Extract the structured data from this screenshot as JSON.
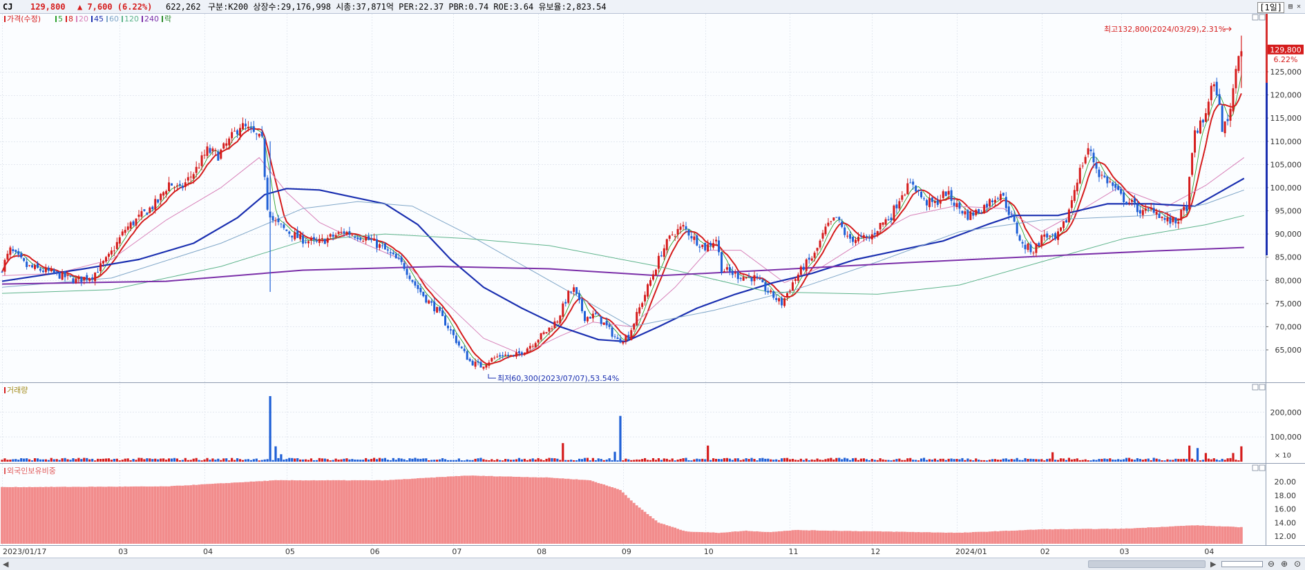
{
  "header": {
    "ticker": "CJ",
    "price": "129,800",
    "change": "▲ 7,600 (6.22%)",
    "volume": "622,262",
    "meta": "구분:K200 상장수:29,176,998 시총:37,871억 PER:22.37 PBR:0.74 ROE:3.64 유보율:2,823.54",
    "period": "[1일]",
    "menu": "▤ ✕"
  },
  "legends": {
    "price": [
      {
        "label": "가격(수정)",
        "color": "#d51c1c"
      },
      {
        "label": "5",
        "color": "#2ca02c"
      },
      {
        "label": "8",
        "color": "#d51c1c"
      },
      {
        "label": "20",
        "color": "#d77fb8"
      },
      {
        "label": "45",
        "color": "#1a2fb0"
      },
      {
        "label": "60",
        "color": "#7fa6c8"
      },
      {
        "label": "120",
        "color": "#5cb38a"
      },
      {
        "label": "240",
        "color": "#7a2ea8"
      },
      {
        "label": "락",
        "color": "#2a8a2a"
      }
    ],
    "volume": {
      "label": "거래량",
      "color": "#a38b1c"
    },
    "foreign": {
      "label": "외국인보유비중",
      "color": "#e05a5a"
    }
  },
  "annotations": {
    "high": "최고132,800(2024/03/29),2.31%",
    "low": "최저60,300(2023/07/07),53.54%",
    "last_price": "129,800",
    "last_pct": "6.22%",
    "volume_multiplier": "× 10"
  },
  "x_axis_labels": [
    {
      "label": "2023/01/17",
      "day": 0
    },
    {
      "label": "03",
      "day": 43
    },
    {
      "label": "04",
      "day": 74
    },
    {
      "label": "05",
      "day": 104
    },
    {
      "label": "06",
      "day": 135
    },
    {
      "label": "07",
      "day": 165
    },
    {
      "label": "08",
      "day": 196
    },
    {
      "label": "09",
      "day": 227
    },
    {
      "label": "10",
      "day": 257
    },
    {
      "label": "11",
      "day": 288
    },
    {
      "label": "12",
      "day": 318
    },
    {
      "label": "2024/01",
      "day": 349
    },
    {
      "label": "02",
      "day": 380
    },
    {
      "label": "03",
      "day": 409
    },
    {
      "label": "04",
      "day": 440
    }
  ],
  "chart_data": [
    {
      "type": "candlestick",
      "title": "가격(수정)",
      "x_range_days": [
        0,
        441
      ],
      "ylim": [
        60000,
        135000
      ],
      "y_ticks": [
        65000,
        70000,
        75000,
        80000,
        85000,
        90000,
        95000,
        100000,
        105000,
        110000,
        115000,
        120000,
        125000
      ],
      "y_tick_labels": [
        "65,000",
        "70,000",
        "75,000",
        "80,000",
        "85,000",
        "90,000",
        "95,000",
        "100,000",
        "105,000",
        "110,000",
        "115,000",
        "120,000",
        "125,000"
      ],
      "price_path": [
        [
          0,
          81500
        ],
        [
          4,
          86500
        ],
        [
          10,
          83000
        ],
        [
          20,
          81500
        ],
        [
          28,
          80000
        ],
        [
          34,
          81000
        ],
        [
          40,
          85000
        ],
        [
          46,
          91000
        ],
        [
          52,
          94000
        ],
        [
          58,
          97000
        ],
        [
          62,
          101000
        ],
        [
          66,
          99500
        ],
        [
          72,
          104000
        ],
        [
          76,
          108000
        ],
        [
          80,
          107000
        ],
        [
          84,
          110000
        ],
        [
          88,
          113500
        ],
        [
          92,
          112000
        ],
        [
          96,
          110000
        ],
        [
          98,
          96000
        ],
        [
          100,
          93000
        ],
        [
          104,
          91000
        ],
        [
          110,
          89000
        ],
        [
          116,
          88000
        ],
        [
          122,
          89500
        ],
        [
          126,
          90500
        ],
        [
          132,
          89500
        ],
        [
          136,
          88500
        ],
        [
          140,
          87000
        ],
        [
          144,
          85000
        ],
        [
          148,
          83000
        ],
        [
          152,
          79000
        ],
        [
          156,
          76000
        ],
        [
          160,
          73500
        ],
        [
          164,
          70000
        ],
        [
          168,
          66000
        ],
        [
          172,
          62500
        ],
        [
          176,
          61500
        ],
        [
          180,
          63000
        ],
        [
          184,
          64000
        ],
        [
          188,
          63500
        ],
        [
          192,
          65000
        ],
        [
          196,
          67000
        ],
        [
          200,
          69000
        ],
        [
          204,
          71500
        ],
        [
          208,
          77000
        ],
        [
          210,
          78000
        ],
        [
          214,
          72000
        ],
        [
          218,
          72500
        ],
        [
          222,
          70000
        ],
        [
          226,
          67000
        ],
        [
          230,
          68000
        ],
        [
          234,
          74000
        ],
        [
          238,
          80000
        ],
        [
          242,
          86000
        ],
        [
          246,
          90000
        ],
        [
          250,
          91500
        ],
        [
          254,
          89000
        ],
        [
          258,
          87000
        ],
        [
          262,
          89000
        ],
        [
          264,
          82500
        ],
        [
          270,
          81000
        ],
        [
          276,
          80500
        ],
        [
          282,
          77000
        ],
        [
          286,
          75000
        ],
        [
          290,
          79500
        ],
        [
          294,
          83000
        ],
        [
          298,
          85500
        ],
        [
          302,
          91000
        ],
        [
          306,
          93500
        ],
        [
          310,
          89000
        ],
        [
          314,
          89000
        ],
        [
          318,
          89000
        ],
        [
          322,
          92000
        ],
        [
          326,
          94000
        ],
        [
          330,
          99000
        ],
        [
          334,
          101000
        ],
        [
          338,
          97000
        ],
        [
          342,
          96500
        ],
        [
          346,
          99000
        ],
        [
          350,
          96000
        ],
        [
          354,
          94000
        ],
        [
          358,
          95000
        ],
        [
          362,
          97000
        ],
        [
          366,
          99000
        ],
        [
          370,
          93500
        ],
        [
          374,
          87500
        ],
        [
          378,
          86500
        ],
        [
          382,
          90000
        ],
        [
          386,
          88500
        ],
        [
          390,
          93000
        ],
        [
          394,
          102000
        ],
        [
          398,
          108500
        ],
        [
          402,
          103000
        ],
        [
          406,
          101000
        ],
        [
          410,
          98000
        ],
        [
          414,
          96500
        ],
        [
          418,
          94500
        ],
        [
          422,
          95500
        ],
        [
          426,
          93000
        ],
        [
          430,
          92500
        ],
        [
          434,
          96000
        ],
        [
          437,
          112000
        ],
        [
          440,
          114000
        ],
        [
          443,
          121500
        ],
        [
          445,
          121000
        ],
        [
          447,
          113000
        ],
        [
          449,
          114000
        ],
        [
          451,
          121500
        ],
        [
          453,
          129800
        ]
      ],
      "high": {
        "value": 132800,
        "date": "2024/03/29",
        "pct": 2.31
      },
      "low": {
        "value": 60300,
        "date": "2023/07/07",
        "pct": 53.54
      },
      "last": {
        "value": 129800,
        "change_pct": 6.22
      },
      "moving_averages": [
        {
          "name": "5",
          "color": "#2ca02c",
          "width": 0.9
        },
        {
          "name": "8",
          "color": "#d51c1c",
          "width": 2
        },
        {
          "name": "20",
          "color": "#d77fb8",
          "width": 1
        },
        {
          "name": "45",
          "color": "#1a2fb0",
          "width": 2.2
        },
        {
          "name": "60",
          "color": "#7fa6c8",
          "width": 1
        },
        {
          "name": "120",
          "color": "#5cb38a",
          "width": 1
        },
        {
          "name": "240",
          "color": "#7a2ea8",
          "width": 2
        }
      ],
      "ma_paths": {
        "45": [
          [
            0,
            79800
          ],
          [
            30,
            82500
          ],
          [
            50,
            84500
          ],
          [
            70,
            88000
          ],
          [
            86,
            93500
          ],
          [
            96,
            98500
          ],
          [
            104,
            99800
          ],
          [
            116,
            99500
          ],
          [
            128,
            98000
          ],
          [
            140,
            96500
          ],
          [
            152,
            92000
          ],
          [
            164,
            84500
          ],
          [
            176,
            78500
          ],
          [
            190,
            74000
          ],
          [
            204,
            70000
          ],
          [
            218,
            67200
          ],
          [
            228,
            66800
          ],
          [
            240,
            70000
          ],
          [
            254,
            74000
          ],
          [
            268,
            77000
          ],
          [
            282,
            79500
          ],
          [
            296,
            81500
          ],
          [
            312,
            84500
          ],
          [
            328,
            86500
          ],
          [
            344,
            88500
          ],
          [
            360,
            92000
          ],
          [
            370,
            94000
          ],
          [
            386,
            94000
          ],
          [
            404,
            96500
          ],
          [
            420,
            96500
          ],
          [
            436,
            96000
          ],
          [
            448,
            100000
          ],
          [
            454,
            102000
          ]
        ],
        "240": [
          [
            0,
            79200
          ],
          [
            60,
            79800
          ],
          [
            110,
            82200
          ],
          [
            160,
            83000
          ],
          [
            200,
            82500
          ],
          [
            240,
            81000
          ],
          [
            280,
            82200
          ],
          [
            330,
            83800
          ],
          [
            380,
            85200
          ],
          [
            420,
            86300
          ],
          [
            454,
            87100
          ]
        ],
        "120": [
          [
            0,
            77200
          ],
          [
            40,
            78000
          ],
          [
            80,
            83000
          ],
          [
            110,
            88500
          ],
          [
            140,
            90000
          ],
          [
            170,
            89000
          ],
          [
            200,
            87500
          ],
          [
            240,
            83000
          ],
          [
            280,
            77500
          ],
          [
            320,
            77000
          ],
          [
            350,
            79000
          ],
          [
            380,
            84000
          ],
          [
            410,
            89000
          ],
          [
            440,
            92000
          ],
          [
            454,
            94000
          ]
        ],
        "60": [
          [
            0,
            78500
          ],
          [
            40,
            80500
          ],
          [
            80,
            88000
          ],
          [
            110,
            95500
          ],
          [
            130,
            97000
          ],
          [
            150,
            96000
          ],
          [
            170,
            90000
          ],
          [
            200,
            80000
          ],
          [
            230,
            70000
          ],
          [
            260,
            73500
          ],
          [
            290,
            78000
          ],
          [
            320,
            84000
          ],
          [
            350,
            90500
          ],
          [
            380,
            93000
          ],
          [
            420,
            94000
          ],
          [
            440,
            96500
          ],
          [
            454,
            99500
          ]
        ],
        "20": [
          [
            0,
            81000
          ],
          [
            20,
            81500
          ],
          [
            40,
            84500
          ],
          [
            60,
            93000
          ],
          [
            80,
            100000
          ],
          [
            94,
            106500
          ],
          [
            104,
            99000
          ],
          [
            116,
            92500
          ],
          [
            130,
            88500
          ],
          [
            146,
            84500
          ],
          [
            160,
            76500
          ],
          [
            176,
            67500
          ],
          [
            190,
            64000
          ],
          [
            204,
            68000
          ],
          [
            216,
            71000
          ],
          [
            230,
            70000
          ],
          [
            246,
            78500
          ],
          [
            258,
            86500
          ],
          [
            270,
            86500
          ],
          [
            286,
            79500
          ],
          [
            300,
            83000
          ],
          [
            316,
            89000
          ],
          [
            332,
            94000
          ],
          [
            348,
            96000
          ],
          [
            366,
            95500
          ],
          [
            380,
            90500
          ],
          [
            394,
            95000
          ],
          [
            408,
            100000
          ],
          [
            426,
            96000
          ],
          [
            440,
            100500
          ],
          [
            454,
            106500
          ]
        ]
      }
    },
    {
      "type": "bar",
      "title": "거래량",
      "ylim": [
        0,
        270000
      ],
      "y_ticks": [
        100000,
        200000
      ],
      "y_tick_labels": [
        "100,000",
        "200,000"
      ],
      "multiplier_label": "× 10",
      "spikes": [
        {
          "day": 98,
          "value": 265000
        },
        {
          "day": 100,
          "value": 62000
        },
        {
          "day": 102,
          "value": 30000
        },
        {
          "day": 205,
          "value": 75000
        },
        {
          "day": 226,
          "value": 185000
        },
        {
          "day": 224,
          "value": 40000
        },
        {
          "day": 258,
          "value": 65000
        },
        {
          "day": 384,
          "value": 38000
        },
        {
          "day": 434,
          "value": 65000
        },
        {
          "day": 437,
          "value": 55000
        },
        {
          "day": 440,
          "value": 35000
        },
        {
          "day": 450,
          "value": 35000
        },
        {
          "day": 453,
          "value": 62000
        }
      ],
      "base_value": 12000
    },
    {
      "type": "bar",
      "title": "외국인보유비중",
      "ylim": [
        11.0,
        21.5
      ],
      "y_ticks": [
        12,
        14,
        16,
        18,
        20
      ],
      "y_tick_labels": [
        "12.00",
        "14.00",
        "16.00",
        "18.00",
        "20.00"
      ],
      "path": [
        [
          0,
          19.2
        ],
        [
          60,
          19.3
        ],
        [
          100,
          20.2
        ],
        [
          140,
          20.2
        ],
        [
          170,
          20.9
        ],
        [
          200,
          20.6
        ],
        [
          215,
          20.2
        ],
        [
          226,
          18.8
        ],
        [
          232,
          16.5
        ],
        [
          240,
          14.0
        ],
        [
          250,
          12.7
        ],
        [
          262,
          12.5
        ],
        [
          272,
          12.8
        ],
        [
          280,
          12.6
        ],
        [
          290,
          12.9
        ],
        [
          320,
          12.7
        ],
        [
          350,
          12.5
        ],
        [
          380,
          13.0
        ],
        [
          410,
          13.1
        ],
        [
          436,
          13.6
        ],
        [
          454,
          13.3
        ]
      ]
    }
  ]
}
